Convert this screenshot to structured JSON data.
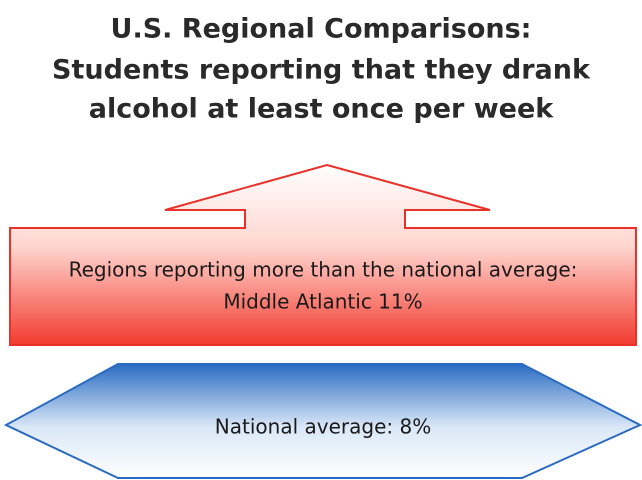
{
  "title": {
    "lines": [
      "U.S. Regional Comparisons:",
      "Students reporting that they drank",
      "alcohol at least once per week"
    ]
  },
  "upper_box": {
    "lines": [
      "Regions reporting more than the national average:",
      "Middle Atlantic 11%"
    ]
  },
  "lower_box": {
    "text": "National average: 8%"
  }
}
